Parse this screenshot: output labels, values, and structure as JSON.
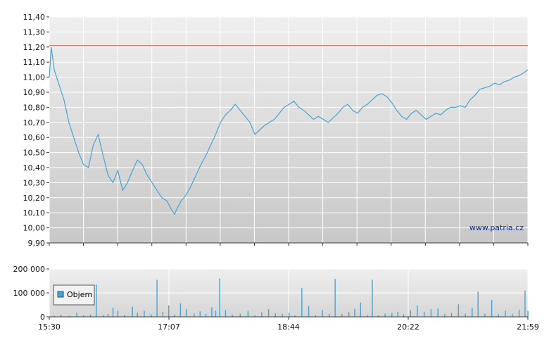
{
  "chart_data": [
    {
      "type": "line",
      "title": "",
      "xlabel": "",
      "ylabel": "",
      "ylim": [
        9.9,
        11.4
      ],
      "yticks": [
        "11,40",
        "11,30",
        "11,20",
        "11,10",
        "11,00",
        "10,90",
        "10,80",
        "10,70",
        "10,60",
        "10,50",
        "10,40",
        "10,30",
        "10,20",
        "10,10",
        "10,00",
        "9,90"
      ],
      "reference_line": {
        "value": 11.21,
        "color": "#e07a6a"
      },
      "series": [
        {
          "color": "#4aa3d2",
          "points": [
            [
              0,
              11.0
            ],
            [
              2,
              11.2
            ],
            [
              5,
              11.05
            ],
            [
              10,
              10.95
            ],
            [
              15,
              10.85
            ],
            [
              20,
              10.7
            ],
            [
              25,
              10.6
            ],
            [
              30,
              10.5
            ],
            [
              35,
              10.42
            ],
            [
              40,
              10.4
            ],
            [
              45,
              10.55
            ],
            [
              50,
              10.62
            ],
            [
              55,
              10.48
            ],
            [
              60,
              10.35
            ],
            [
              65,
              10.3
            ],
            [
              70,
              10.38
            ],
            [
              75,
              10.25
            ],
            [
              80,
              10.3
            ],
            [
              85,
              10.38
            ],
            [
              90,
              10.45
            ],
            [
              95,
              10.42
            ],
            [
              100,
              10.35
            ],
            [
              105,
              10.3
            ],
            [
              110,
              10.25
            ],
            [
              115,
              10.2
            ],
            [
              120,
              10.18
            ],
            [
              125,
              10.12
            ],
            [
              128,
              10.09
            ],
            [
              130,
              10.12
            ],
            [
              135,
              10.18
            ],
            [
              140,
              10.22
            ],
            [
              145,
              10.28
            ],
            [
              150,
              10.35
            ],
            [
              155,
              10.42
            ],
            [
              160,
              10.48
            ],
            [
              165,
              10.55
            ],
            [
              170,
              10.62
            ],
            [
              175,
              10.7
            ],
            [
              180,
              10.75
            ],
            [
              185,
              10.78
            ],
            [
              190,
              10.82
            ],
            [
              195,
              10.78
            ],
            [
              200,
              10.74
            ],
            [
              205,
              10.7
            ],
            [
              210,
              10.62
            ],
            [
              215,
              10.65
            ],
            [
              220,
              10.68
            ],
            [
              225,
              10.7
            ],
            [
              230,
              10.72
            ],
            [
              235,
              10.76
            ],
            [
              240,
              10.8
            ],
            [
              245,
              10.82
            ],
            [
              250,
              10.84
            ],
            [
              255,
              10.8
            ],
            [
              260,
              10.78
            ],
            [
              265,
              10.75
            ],
            [
              270,
              10.72
            ],
            [
              275,
              10.74
            ],
            [
              280,
              10.72
            ],
            [
              285,
              10.7
            ],
            [
              290,
              10.73
            ],
            [
              295,
              10.76
            ],
            [
              300,
              10.8
            ],
            [
              305,
              10.82
            ],
            [
              310,
              10.78
            ],
            [
              315,
              10.76
            ],
            [
              320,
              10.8
            ],
            [
              325,
              10.82
            ],
            [
              330,
              10.85
            ],
            [
              335,
              10.88
            ],
            [
              340,
              10.89
            ],
            [
              345,
              10.87
            ],
            [
              350,
              10.83
            ],
            [
              355,
              10.78
            ],
            [
              360,
              10.74
            ],
            [
              365,
              10.72
            ],
            [
              370,
              10.76
            ],
            [
              375,
              10.78
            ],
            [
              380,
              10.75
            ],
            [
              385,
              10.72
            ],
            [
              390,
              10.74
            ],
            [
              395,
              10.76
            ],
            [
              400,
              10.75
            ],
            [
              405,
              10.78
            ],
            [
              410,
              10.8
            ],
            [
              415,
              10.8
            ],
            [
              420,
              10.81
            ],
            [
              425,
              10.8
            ],
            [
              430,
              10.85
            ],
            [
              435,
              10.88
            ],
            [
              440,
              10.92
            ],
            [
              445,
              10.93
            ],
            [
              450,
              10.94
            ],
            [
              455,
              10.96
            ],
            [
              460,
              10.95
            ],
            [
              465,
              10.97
            ],
            [
              470,
              10.98
            ],
            [
              475,
              11.0
            ],
            [
              480,
              11.01
            ],
            [
              485,
              11.03
            ],
            [
              489,
              11.05
            ]
          ]
        }
      ]
    },
    {
      "type": "bar",
      "title": "",
      "xlabel": "",
      "ylabel": "",
      "ylim": [
        0,
        200000
      ],
      "yticks": [
        "200 000",
        "100 000",
        "0"
      ],
      "xticks": [
        "15:30",
        "17:07",
        "18:44",
        "20:22",
        "21:59"
      ],
      "legend": {
        "label": "Objem",
        "position": "lower-left"
      },
      "series": [
        {
          "name": "Objem",
          "color": "#4aa3d2",
          "bars": [
            [
              5,
              5000
            ],
            [
              12,
              9000
            ],
            [
              20,
              4000
            ],
            [
              28,
              18000
            ],
            [
              35,
              6000
            ],
            [
              42,
              9000
            ],
            [
              48,
              135000
            ],
            [
              55,
              7000
            ],
            [
              60,
              12000
            ],
            [
              65,
              38000
            ],
            [
              70,
              26000
            ],
            [
              77,
              8000
            ],
            [
              85,
              42000
            ],
            [
              90,
              17000
            ],
            [
              97,
              25000
            ],
            [
              104,
              11000
            ],
            [
              110,
              155000
            ],
            [
              116,
              21000
            ],
            [
              122,
              48000
            ],
            [
              128,
              9000
            ],
            [
              134,
              56000
            ],
            [
              140,
              32000
            ],
            [
              148,
              14000
            ],
            [
              154,
              23000
            ],
            [
              160,
              12000
            ],
            [
              166,
              40000
            ],
            [
              170,
              26000
            ],
            [
              174,
              160000
            ],
            [
              180,
              28000
            ],
            [
              187,
              9000
            ],
            [
              195,
              12000
            ],
            [
              203,
              25000
            ],
            [
              210,
              6000
            ],
            [
              217,
              19000
            ],
            [
              224,
              32000
            ],
            [
              231,
              15000
            ],
            [
              238,
              12000
            ],
            [
              245,
              18000
            ],
            [
              251,
              6000
            ],
            [
              258,
              120000
            ],
            [
              265,
              45000
            ],
            [
              272,
              6000
            ],
            [
              279,
              28000
            ],
            [
              286,
              12000
            ],
            [
              292,
              158000
            ],
            [
              299,
              11000
            ],
            [
              306,
              20000
            ],
            [
              312,
              33000
            ],
            [
              318,
              60000
            ],
            [
              325,
              7000
            ],
            [
              330,
              155000
            ],
            [
              336,
              6000
            ],
            [
              343,
              13000
            ],
            [
              350,
              16000
            ],
            [
              356,
              21000
            ],
            [
              362,
              11000
            ],
            [
              369,
              27000
            ],
            [
              376,
              48000
            ],
            [
              383,
              20000
            ],
            [
              390,
              32000
            ],
            [
              397,
              35000
            ],
            [
              404,
              11000
            ],
            [
              411,
              16000
            ],
            [
              418,
              52000
            ],
            [
              425,
              13000
            ],
            [
              432,
              38000
            ],
            [
              438,
              105000
            ],
            [
              445,
              13000
            ],
            [
              452,
              70000
            ],
            [
              459,
              11000
            ],
            [
              466,
              25000
            ],
            [
              473,
              12000
            ],
            [
              480,
              30000
            ],
            [
              486,
              110000
            ],
            [
              489,
              25000
            ]
          ]
        }
      ]
    }
  ],
  "labels": {
    "watermark": "www.patria.cz",
    "legend": "Objem"
  }
}
